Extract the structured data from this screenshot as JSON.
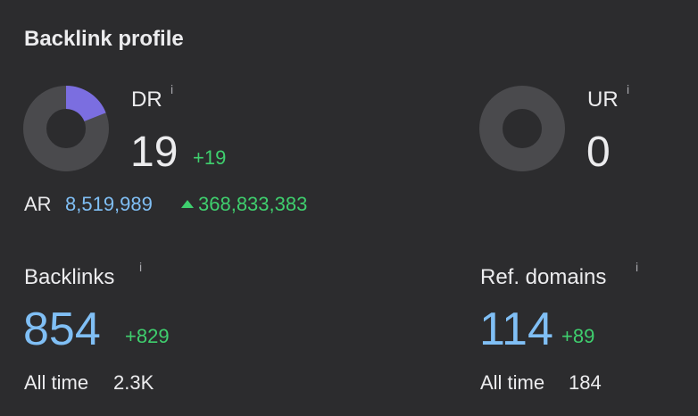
{
  "header": {
    "title": "Backlink profile"
  },
  "ratings": [
    {
      "label": "DR",
      "info": "i",
      "value": 19,
      "change": "+19",
      "range": [
        0,
        100
      ]
    },
    {
      "label": "UR",
      "info": "i",
      "value": 0,
      "range": [
        0,
        100
      ]
    }
  ],
  "ar": {
    "label": "AR",
    "value": "8,519,989",
    "change": "368,833,383"
  },
  "counts": [
    {
      "label": "Backlinks",
      "info": "i",
      "value": 854,
      "change": "+829",
      "all_time_label": "All time",
      "all_time": "2.3K"
    },
    {
      "label": "Ref. domains",
      "info": "i",
      "value": 114,
      "change": "+89",
      "all_time_label": "All time",
      "all_time": "184"
    }
  ]
}
